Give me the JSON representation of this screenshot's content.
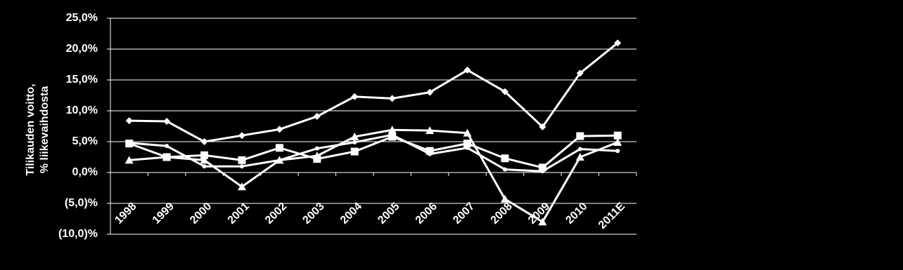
{
  "chart_data": {
    "type": "line",
    "y_label": [
      "Tilikauden voitto,",
      "% liikevaihdosta"
    ],
    "categories": [
      "1998",
      "1999",
      "2000",
      "2001",
      "2002",
      "2003",
      "2004",
      "2005",
      "2006",
      "2007",
      "2008",
      "2009",
      "2010",
      "2011E"
    ],
    "series": [
      {
        "color": "#ffffff",
        "marker": "diamond",
        "values": [
          8.4,
          8.3,
          5.0,
          6.0,
          7.0,
          9.1,
          12.3,
          12.0,
          13.0,
          16.6,
          13.1,
          7.4,
          16.1,
          21.0
        ]
      },
      {
        "color": "#ffffff",
        "marker": "square",
        "values": [
          4.7,
          2.5,
          2.8,
          2.0,
          4.0,
          2.2,
          3.4,
          5.8,
          3.5,
          4.7,
          2.3,
          0.8,
          5.9,
          6.0
        ]
      },
      {
        "color": "#ffffff",
        "marker": "triangle",
        "values": [
          2.0,
          2.5,
          2.0,
          -2.3,
          2.0,
          2.7,
          5.8,
          6.9,
          6.8,
          6.4,
          -4.3,
          -8.0,
          2.5,
          4.9
        ]
      },
      {
        "color": "#ffffff",
        "marker": "circle",
        "values": [
          4.8,
          4.3,
          1.0,
          1.0,
          2.0,
          3.9,
          4.9,
          6.1,
          3.0,
          4.0,
          0.5,
          0.2,
          3.8,
          3.5
        ]
      }
    ],
    "ylim": [
      -10,
      25
    ],
    "yticks": [
      {
        "value": -10,
        "label": "(10,0)%"
      },
      {
        "value": -5,
        "label": "(5,0)%"
      },
      {
        "value": 0,
        "label": "0,0%"
      },
      {
        "value": 5,
        "label": "5,0%"
      },
      {
        "value": 10,
        "label": "10,0%"
      },
      {
        "value": 15,
        "label": "15,0%"
      },
      {
        "value": 20,
        "label": "20,0%"
      },
      {
        "value": 25,
        "label": "25,0%"
      }
    ],
    "grid": true
  }
}
